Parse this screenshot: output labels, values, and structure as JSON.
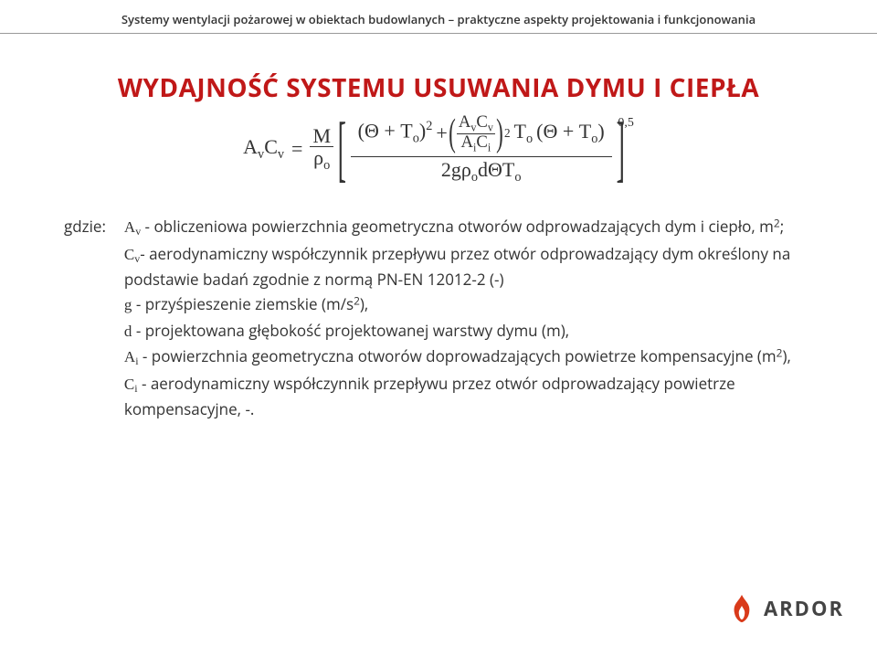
{
  "header": "Systemy wentylacji pożarowej w obiektach budowlanych – praktyczne aspekty projektowania i funkcjonowania",
  "title": "WYDAJNOŚĆ SYSTEMU USUWANIA DYMU I CIEPŁA",
  "formula": {
    "lhs_A": "A",
    "lhs_C": "C",
    "sub_v": "v",
    "eq": "=",
    "M": "M",
    "rho": "ρ",
    "sub_o": "o",
    "sub_i": "i",
    "theta": "Θ",
    "plus": "+",
    "T": "T",
    "exp2": "2",
    "two_g": "2g",
    "d": "d",
    "exp05": "0,5"
  },
  "defs": {
    "label": "gdzie:",
    "items": [
      {
        "sym": "A<sub class='ssub'>v</sub>",
        "txt": " - obliczeniowa powierzchnia geometryczna otworów odprowadzających dym i ciepło, m<span class='ssup'>2</span>;"
      },
      {
        "sym": "C<sub class='ssub'>v</sub>",
        "txt": "- aerodynamiczny współczynnik przepływu przez otwór odprowadzający dym określony na podstawie badań zgodnie z normą PN-EN 12012-2 (-)"
      },
      {
        "sym": "g",
        "txt": " -  przyśpieszenie ziemskie (m/s<span class='ssup'>2</span>),"
      },
      {
        "sym": "d",
        "txt": " -  projektowana głębokość projektowanej warstwy dymu (m),"
      },
      {
        "sym": "A<sub class='ssub'>i</sub>",
        "txt": " - powierzchnia geometryczna otworów doprowadzających powietrze kompensacyjne (m<span class='ssup'>2</span>),"
      },
      {
        "sym": "C<sub class='ssub'>i</sub>",
        "txt": " -  aerodynamiczny współczynnik przepływu przez otwór odprowadzający powietrze kompensacyjne, -."
      }
    ]
  },
  "brand": "ARDOR",
  "colors": {
    "title": "#c01818",
    "body": "#333333",
    "flame": "#d93a1a",
    "bg": "#ffffff"
  }
}
